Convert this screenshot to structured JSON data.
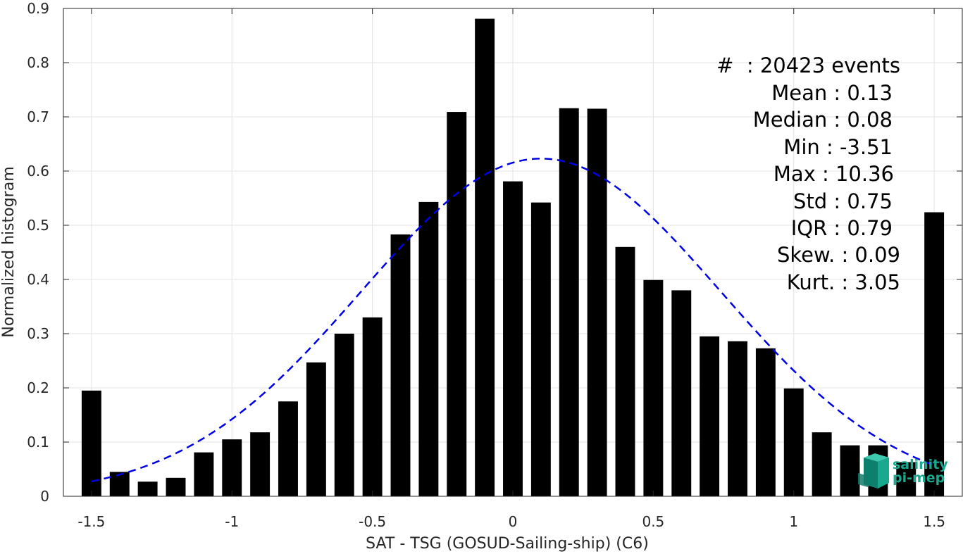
{
  "chart_data": {
    "type": "bar",
    "xlabel": "SAT - TSG (GOSUD-Sailing-ship) (C6)",
    "ylabel": "Normalized histogram",
    "xlim": [
      -1.6,
      1.6
    ],
    "ylim": [
      0,
      0.9
    ],
    "grid": true,
    "x_ticks": [
      -1.5,
      -1,
      -0.5,
      0,
      0.5,
      1,
      1.5
    ],
    "x_tick_labels": [
      "-1.5",
      "-1",
      "-0.5",
      "0",
      "0.5",
      "1",
      "1.5"
    ],
    "y_ticks": [
      0,
      0.1,
      0.2,
      0.3,
      0.4,
      0.5,
      0.6,
      0.7,
      0.8,
      0.9
    ],
    "y_tick_labels": [
      "0",
      "0.1",
      "0.2",
      "0.3",
      "0.4",
      "0.5",
      "0.6",
      "0.7",
      "0.8",
      "0.9"
    ],
    "bar_width": 0.07,
    "series": [
      {
        "type": "bar",
        "color": "#000000",
        "x": [
          -1.5,
          -1.4,
          -1.3,
          -1.2,
          -1.1,
          -1.0,
          -0.9,
          -0.8,
          -0.7,
          -0.6,
          -0.5,
          -0.4,
          -0.3,
          -0.2,
          -0.1,
          0.0,
          0.1,
          0.2,
          0.3,
          0.4,
          0.5,
          0.6,
          0.7,
          0.8,
          0.9,
          1.0,
          1.1,
          1.2,
          1.3,
          1.4,
          1.5
        ],
        "values": [
          0.195,
          0.045,
          0.027,
          0.034,
          0.081,
          0.105,
          0.118,
          0.175,
          0.247,
          0.3,
          0.33,
          0.483,
          0.543,
          0.709,
          0.881,
          0.581,
          0.542,
          0.716,
          0.715,
          0.46,
          0.399,
          0.38,
          0.295,
          0.286,
          0.273,
          0.199,
          0.118,
          0.094,
          0.094,
          0.063,
          0.524
        ]
      },
      {
        "type": "line",
        "style": "dashed",
        "color": "#0000e6",
        "mean": 0.1,
        "std": 0.64,
        "peak": 0.623,
        "x_range": [
          -1.5,
          1.5
        ]
      }
    ],
    "annotations": [
      "#  : 20423 events",
      "Mean : 0.13",
      "Median : 0.08",
      "Min : -3.51",
      "Max : 10.36",
      "Std : 0.75",
      "IQR : 0.79",
      "Skew. : 0.09",
      "Kurt. : 3.05"
    ]
  },
  "logo": {
    "line1": "salinity",
    "line2": "pi-mep",
    "color": "#1aa98f"
  }
}
